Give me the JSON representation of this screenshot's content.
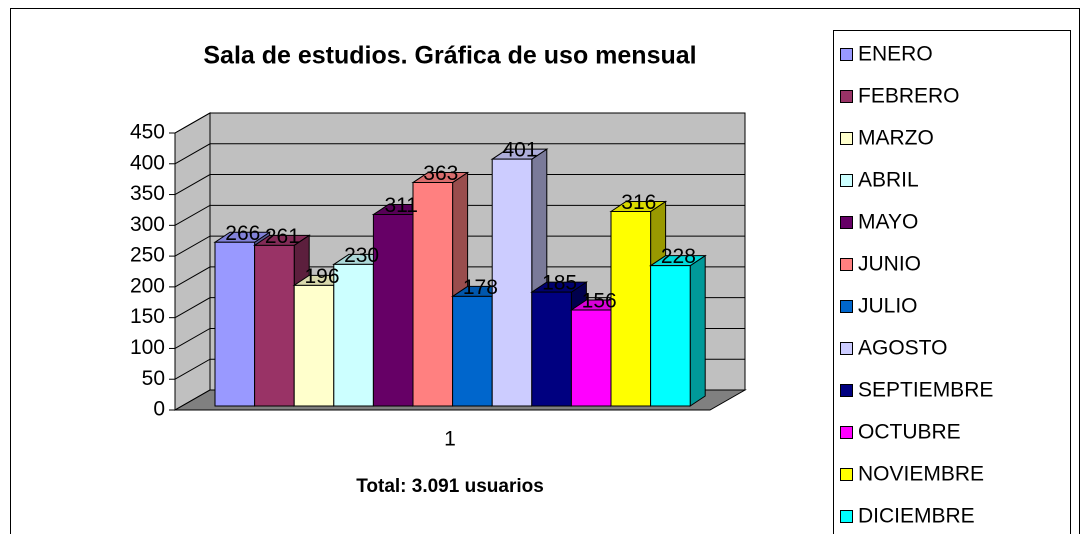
{
  "chart_data": {
    "type": "bar3d",
    "title": "Sala de estudios. Gráfica de uso mensual",
    "xlabel": "Total: 3.091 usuarios",
    "categories": [
      "1"
    ],
    "ylim": [
      0,
      450
    ],
    "yticks": [
      0,
      50,
      100,
      150,
      200,
      250,
      300,
      350,
      400,
      450
    ],
    "grid": true,
    "legend": "right",
    "series": [
      {
        "name": "ENERO",
        "color": "#9999ff",
        "values": [
          266
        ]
      },
      {
        "name": "FEBRERO",
        "color": "#993366",
        "values": [
          261
        ]
      },
      {
        "name": "MARZO",
        "color": "#ffffcc",
        "values": [
          196
        ]
      },
      {
        "name": "ABRIL",
        "color": "#ccffff",
        "values": [
          230
        ]
      },
      {
        "name": "MAYO",
        "color": "#660066",
        "values": [
          311
        ]
      },
      {
        "name": "JUNIO",
        "color": "#ff8080",
        "values": [
          363
        ]
      },
      {
        "name": "JULIO",
        "color": "#0066cc",
        "values": [
          178
        ]
      },
      {
        "name": "AGOSTO",
        "color": "#ccccff",
        "values": [
          401
        ]
      },
      {
        "name": "SEPTIEMBRE",
        "color": "#000080",
        "values": [
          185
        ]
      },
      {
        "name": "OCTUBRE",
        "color": "#ff00ff",
        "values": [
          156
        ]
      },
      {
        "name": "NOVIEMBRE",
        "color": "#ffff00",
        "values": [
          316
        ]
      },
      {
        "name": "DICIEMBRE",
        "color": "#00ffff",
        "values": [
          228
        ]
      }
    ]
  }
}
